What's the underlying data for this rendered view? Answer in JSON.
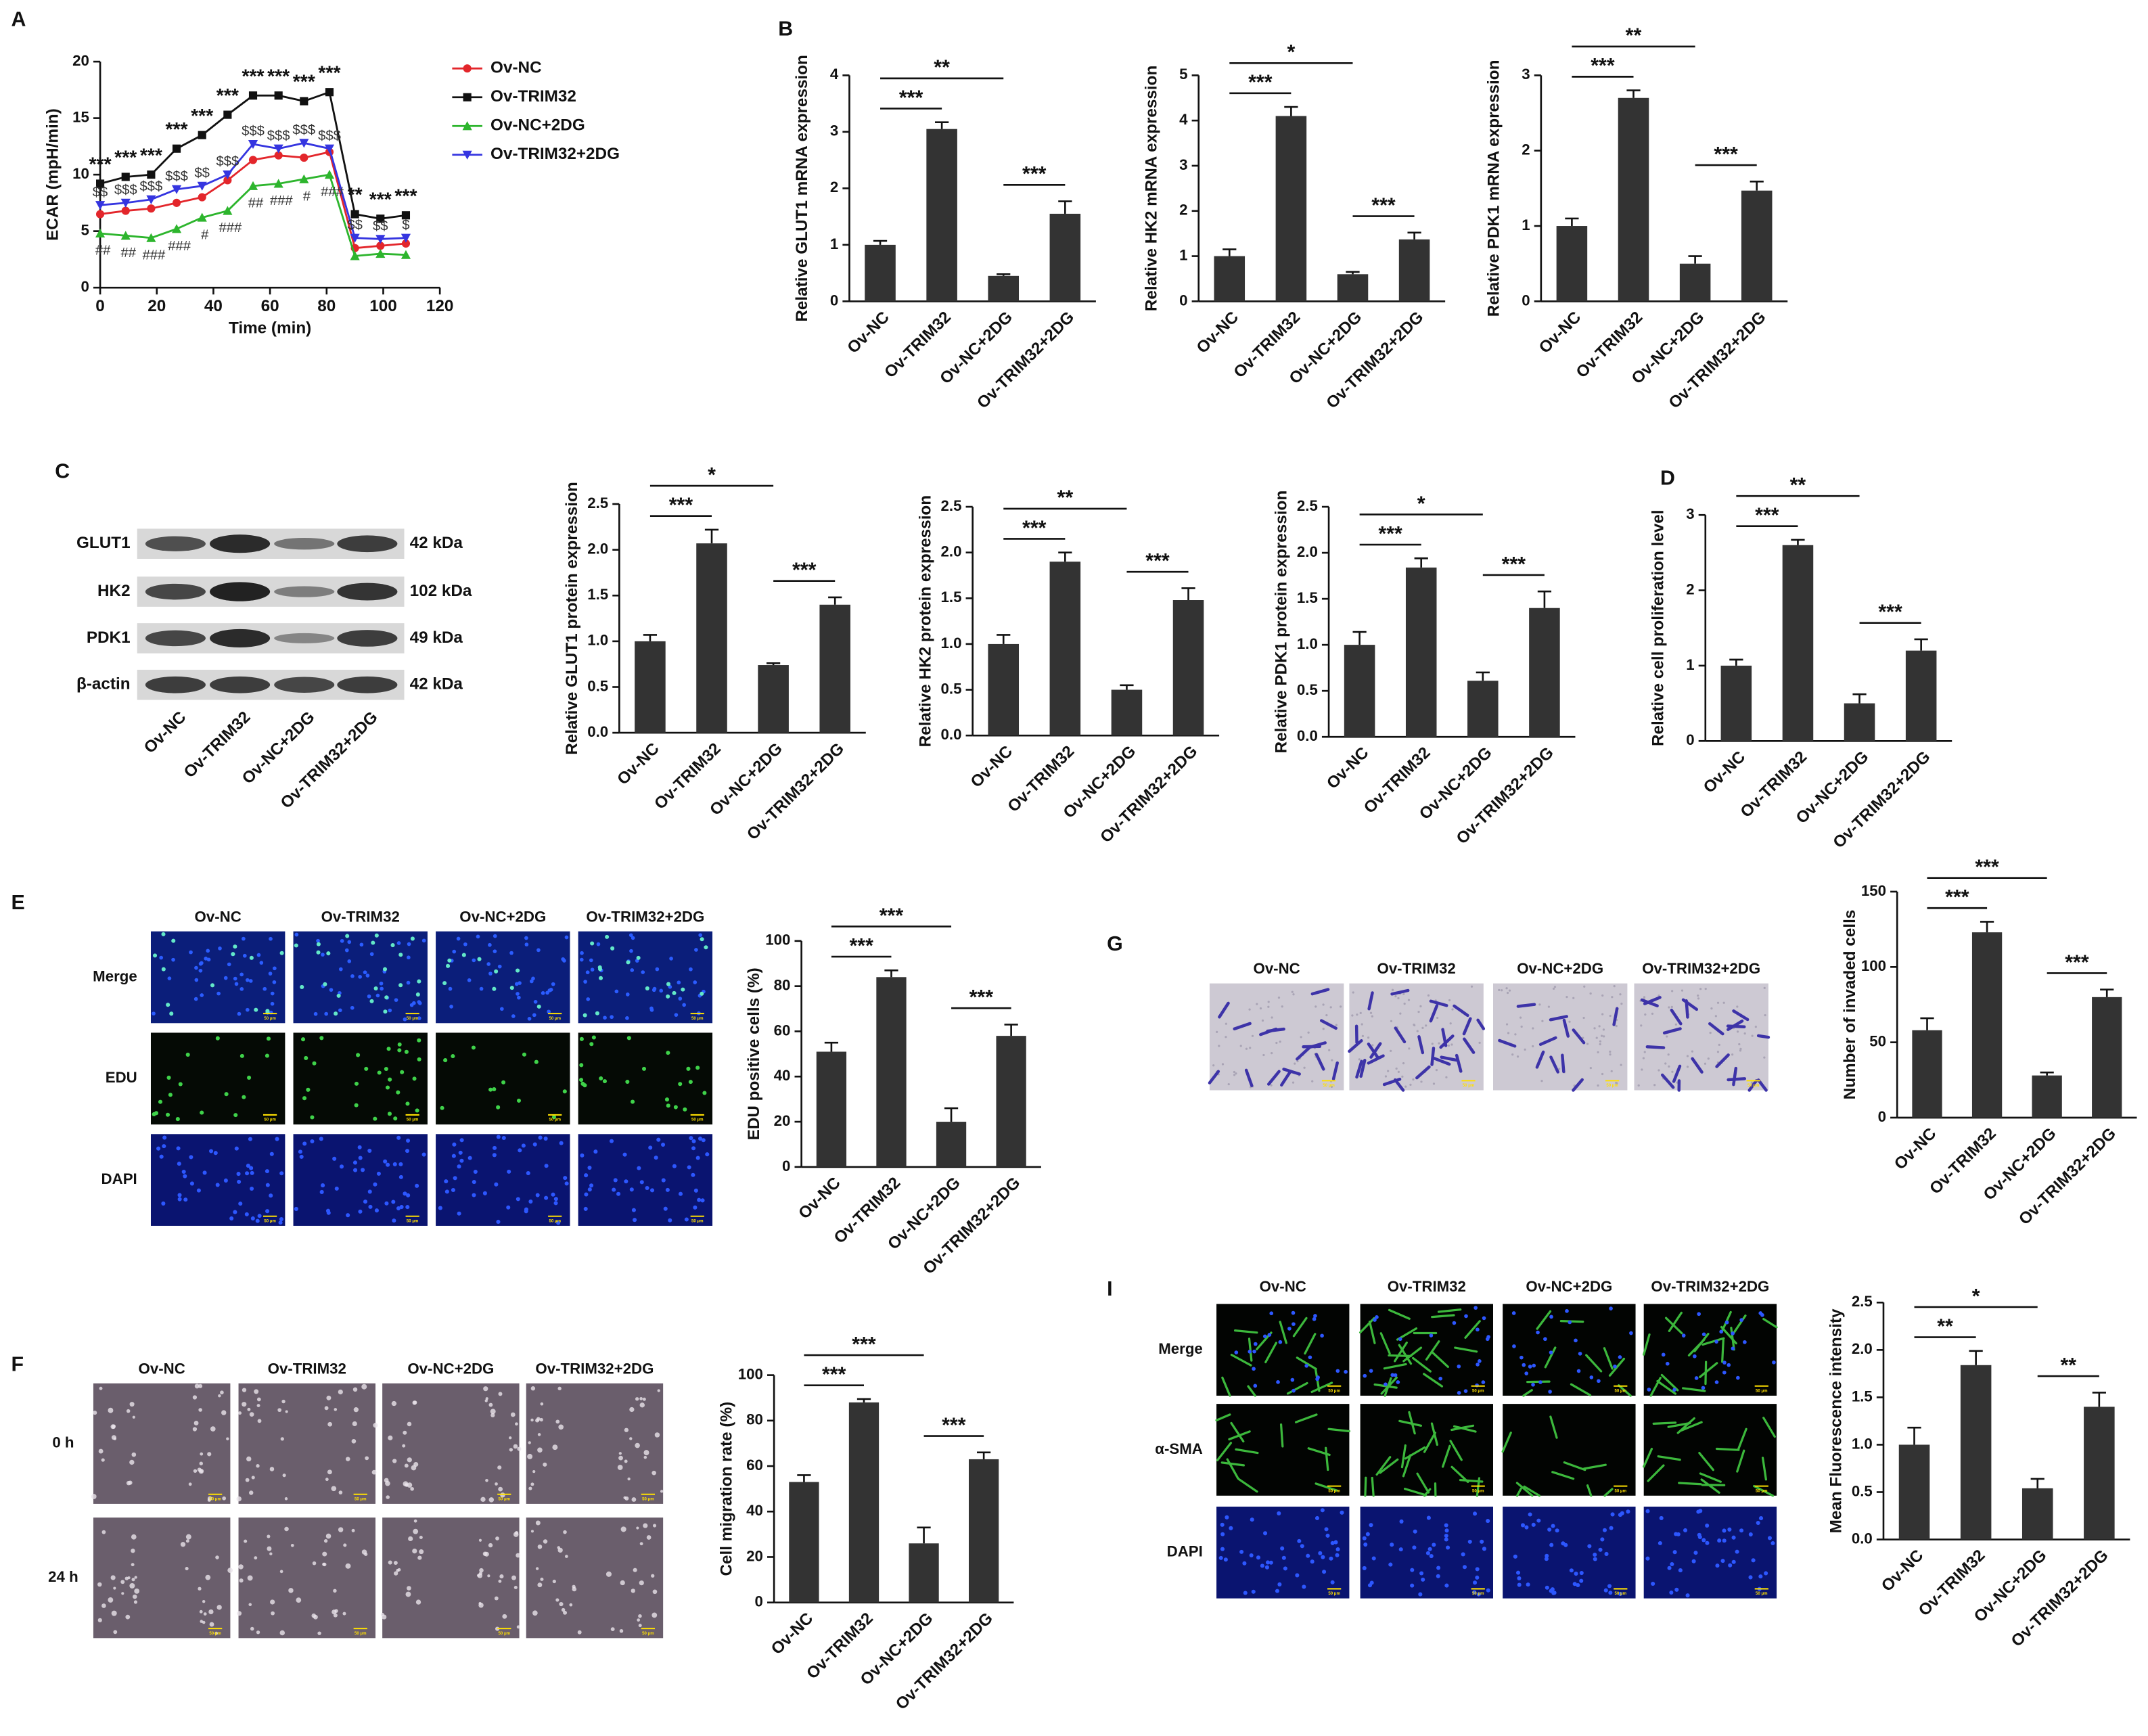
{
  "chart_data": [
    {
      "type": "line",
      "x_label": "Time (min)",
      "y_label": "ECAR (mpH/min)",
      "x": [
        0,
        9,
        18,
        27,
        36,
        45,
        54,
        63,
        72,
        81,
        90,
        99,
        108
      ],
      "xlim": [
        0,
        120
      ],
      "xticks": [
        0,
        20,
        40,
        60,
        80,
        100,
        120
      ],
      "ylim": [
        0,
        20
      ],
      "yticks": [
        0,
        5,
        10,
        15,
        20
      ],
      "legend": "right",
      "series": [
        {
          "name": "Ov-NC",
          "color": "#e3262b",
          "marker": "circle",
          "values": [
            6.5,
            6.8,
            7,
            7.5,
            8,
            9.5,
            11.3,
            11.7,
            11.5,
            12,
            3.5,
            3.7,
            3.9
          ]
        },
        {
          "name": "Ov-TRIM32",
          "color": "#111111",
          "marker": "square",
          "values": [
            9.2,
            9.8,
            10,
            12.3,
            13.5,
            15.3,
            17,
            17,
            16.5,
            17.3,
            6.5,
            6.1,
            6.4
          ]
        },
        {
          "name": "Ov-NC+2DG",
          "color": "#2db52d",
          "marker": "triangle",
          "values": [
            4.8,
            4.6,
            4.4,
            5.2,
            6.2,
            6.8,
            9,
            9.2,
            9.6,
            10,
            2.8,
            3,
            2.9
          ]
        },
        {
          "name": "Ov-TRIM32+2DG",
          "color": "#3535e0",
          "marker": "triangle-down",
          "values": [
            7.3,
            7.5,
            7.8,
            8.7,
            9,
            10,
            12.7,
            12.3,
            12.8,
            12.3,
            4.4,
            4.3,
            4.4
          ]
        }
      ],
      "stars": [
        "***",
        "***",
        "***",
        "***",
        "***",
        "***",
        "***",
        "***",
        "***",
        "***",
        "**",
        "***",
        "***"
      ],
      "dollars": [
        "$$",
        "$$$",
        "$$$",
        "$$$",
        "$$",
        "$$$",
        "$$$",
        "$$$",
        "$$$",
        "$$$",
        "$$",
        "$$",
        "$"
      ],
      "hashes": [
        "##",
        "##",
        "###",
        "###",
        "#",
        "###",
        "##",
        "###",
        "#",
        "###",
        null,
        null,
        null
      ]
    },
    {
      "type": "bar",
      "y_label": "Relative GLUT1 mRNA expression",
      "categories": [
        "Ov-NC",
        "Ov-TRIM32",
        "Ov-NC+2DG",
        "Ov-TRIM32+2DG"
      ],
      "values": [
        1,
        3.05,
        0.45,
        1.55
      ],
      "errors": [
        0.07,
        0.12,
        0.03,
        0.22
      ],
      "color": "#333333",
      "ylim": [
        0,
        4
      ],
      "yticks": [
        0,
        1,
        2,
        3,
        4
      ],
      "significance": [
        "***",
        "**",
        "***"
      ]
    },
    {
      "type": "bar",
      "y_label": "Relative HK2 mRNA expression",
      "categories": [
        "Ov-NC",
        "Ov-TRIM32",
        "Ov-NC+2DG",
        "Ov-TRIM32+2DG"
      ],
      "values": [
        1,
        4.1,
        0.6,
        1.37
      ],
      "errors": [
        0.15,
        0.2,
        0.05,
        0.15
      ],
      "color": "#333333",
      "ylim": [
        0,
        5
      ],
      "yticks": [
        0,
        1,
        2,
        3,
        4,
        5
      ],
      "significance": [
        "***",
        "*",
        "***"
      ]
    },
    {
      "type": "bar",
      "y_label": "Relative PDK1 mRNA expression",
      "categories": [
        "Ov-NC",
        "Ov-TRIM32",
        "Ov-NC+2DG",
        "Ov-TRIM32+2DG"
      ],
      "values": [
        1,
        2.7,
        0.5,
        1.47
      ],
      "errors": [
        0.1,
        0.1,
        0.1,
        0.12
      ],
      "color": "#333333",
      "ylim": [
        0,
        3
      ],
      "yticks": [
        0,
        1,
        2,
        3
      ],
      "significance": [
        "***",
        "**",
        "***"
      ]
    },
    {
      "type": "bar",
      "y_label": "Relative GLUT1 protein expression",
      "categories": [
        "Ov-NC",
        "Ov-TRIM32",
        "Ov-NC+2DG",
        "Ov-TRIM32+2DG"
      ],
      "values": [
        1,
        2.07,
        0.74,
        1.4
      ],
      "errors": [
        0.07,
        0.15,
        0.02,
        0.08
      ],
      "color": "#333333",
      "ylim": [
        0,
        2.5
      ],
      "yticks": [
        {
          "value": 0,
          "label": "0.0"
        },
        0.5,
        {
          "value": 1,
          "label": "1.0"
        },
        1.5,
        {
          "value": 2,
          "label": "2.0"
        },
        2.5
      ],
      "significance": [
        "***",
        "*",
        "***"
      ]
    },
    {
      "type": "bar",
      "y_label": "Relative HK2 protein expression",
      "categories": [
        "Ov-NC",
        "Ov-TRIM32",
        "Ov-NC+2DG",
        "Ov-TRIM32+2DG"
      ],
      "values": [
        1,
        1.9,
        0.5,
        1.48
      ],
      "errors": [
        0.1,
        0.1,
        0.05,
        0.13
      ],
      "color": "#333333",
      "ylim": [
        0,
        2.5
      ],
      "yticks": [
        {
          "value": 0,
          "label": "0.0"
        },
        0.5,
        {
          "value": 1,
          "label": "1.0"
        },
        1.5,
        {
          "value": 2,
          "label": "2.0"
        },
        2.5
      ],
      "significance": [
        "***",
        "**",
        "***"
      ]
    },
    {
      "type": "bar",
      "y_label": "Relative PDK1 protein expression",
      "categories": [
        "Ov-NC",
        "Ov-TRIM32",
        "Ov-NC+2DG",
        "Ov-TRIM32+2DG"
      ],
      "values": [
        1,
        1.84,
        0.61,
        1.4
      ],
      "errors": [
        0.14,
        0.1,
        0.09,
        0.18
      ],
      "color": "#333333",
      "ylim": [
        0,
        2.5
      ],
      "yticks": [
        {
          "value": 0,
          "label": "0.0"
        },
        0.5,
        {
          "value": 1,
          "label": "1.0"
        },
        1.5,
        {
          "value": 2,
          "label": "2.0"
        },
        2.5
      ],
      "significance": [
        "***",
        "*",
        "***"
      ]
    },
    {
      "type": "bar",
      "y_label": "Relative cell proliferation level",
      "categories": [
        "Ov-NC",
        "Ov-TRIM32",
        "Ov-NC+2DG",
        "Ov-TRIM32+2DG"
      ],
      "values": [
        1,
        2.6,
        0.5,
        1.2
      ],
      "errors": [
        0.08,
        0.07,
        0.12,
        0.15
      ],
      "color": "#333333",
      "ylim": [
        0,
        3
      ],
      "yticks": [
        0,
        1,
        2,
        3
      ],
      "significance": [
        "***",
        "**",
        "***"
      ]
    },
    {
      "type": "bar",
      "y_label": "EDU positive cells (%)",
      "categories": [
        "Ov-NC",
        "Ov-TRIM32",
        "Ov-NC+2DG",
        "Ov-TRIM32+2DG"
      ],
      "values": [
        51,
        84,
        20,
        58
      ],
      "errors": [
        4,
        3,
        6,
        5
      ],
      "color": "#333333",
      "ylim": [
        0,
        100
      ],
      "yticks": [
        0,
        20,
        40,
        60,
        80,
        100
      ],
      "significance": [
        "***",
        "***",
        "***"
      ]
    },
    {
      "type": "bar",
      "y_label": "Cell migration rate (%)",
      "categories": [
        "Ov-NC",
        "Ov-TRIM32",
        "Ov-NC+2DG",
        "Ov-TRIM32+2DG"
      ],
      "values": [
        53,
        88,
        26,
        63
      ],
      "errors": [
        3,
        1.5,
        7,
        3
      ],
      "color": "#333333",
      "ylim": [
        0,
        100
      ],
      "yticks": [
        0,
        20,
        40,
        60,
        80,
        100
      ],
      "significance": [
        "***",
        "***",
        "***"
      ]
    },
    {
      "type": "bar",
      "y_label": "Number of invaded cells",
      "categories": [
        "Ov-NC",
        "Ov-TRIM32",
        "Ov-NC+2DG",
        "Ov-TRIM32+2DG"
      ],
      "values": [
        58,
        123,
        28,
        80
      ],
      "errors": [
        8,
        7,
        2,
        5
      ],
      "color": "#333333",
      "ylim": [
        0,
        150
      ],
      "yticks": [
        0,
        50,
        100,
        150
      ],
      "significance": [
        "***",
        "***",
        "***"
      ]
    },
    {
      "type": "bar",
      "y_label": "Mean Fluorescence intensity",
      "categories": [
        "Ov-NC",
        "Ov-TRIM32",
        "Ov-NC+2DG",
        "Ov-TRIM32+2DG"
      ],
      "values": [
        1,
        1.84,
        0.54,
        1.4
      ],
      "errors": [
        0.18,
        0.15,
        0.1,
        0.15
      ],
      "color": "#333333",
      "ylim": [
        0,
        2.5
      ],
      "yticks": [
        {
          "value": 0,
          "label": "0.0"
        },
        0.5,
        {
          "value": 1,
          "label": "1.0"
        },
        1.5,
        {
          "value": 2,
          "label": "2.0"
        },
        2.5
      ],
      "significance": [
        "**",
        "*",
        "**"
      ]
    }
  ],
  "panels": {
    "A": {
      "letter": "A"
    },
    "B": {
      "letter": "B"
    },
    "C": {
      "letter": "C",
      "bands": [
        {
          "protein": "GLUT1",
          "size": "42 kDa"
        },
        {
          "protein": "HK2",
          "size": "102 kDa"
        },
        {
          "protein": "PDK1",
          "size": "49 kDa"
        },
        {
          "protein": "β-actin",
          "size": "42 kDa"
        }
      ],
      "lanes": [
        "Ov-NC",
        "Ov-TRIM32",
        "Ov-NC+2DG",
        "Ov-TRIM32+2DG"
      ]
    },
    "D": {
      "letter": "D"
    },
    "E": {
      "letter": "E",
      "columns": [
        "Ov-NC",
        "Ov-TRIM32",
        "Ov-NC+2DG",
        "Ov-TRIM32+2DG"
      ],
      "rows": [
        "Merge",
        "EDU",
        "DAPI"
      ],
      "scale_bar": "50 μm"
    },
    "F": {
      "letter": "F",
      "columns": [
        "Ov-NC",
        "Ov-TRIM32",
        "Ov-NC+2DG",
        "Ov-TRIM32+2DG"
      ],
      "rows": [
        "0 h",
        "24 h"
      ],
      "scale_bar": "50 μm"
    },
    "G": {
      "letter": "G",
      "columns": [
        "Ov-NC",
        "Ov-TRIM32",
        "Ov-NC+2DG",
        "Ov-TRIM32+2DG"
      ],
      "scale_bar": "50 μm"
    },
    "I": {
      "letter": "I",
      "columns": [
        "Ov-NC",
        "Ov-TRIM32",
        "Ov-NC+2DG",
        "Ov-TRIM32+2DG"
      ],
      "rows": [
        "Merge",
        "α-SMA",
        "DAPI"
      ],
      "scale_bar": "50 μm"
    }
  }
}
